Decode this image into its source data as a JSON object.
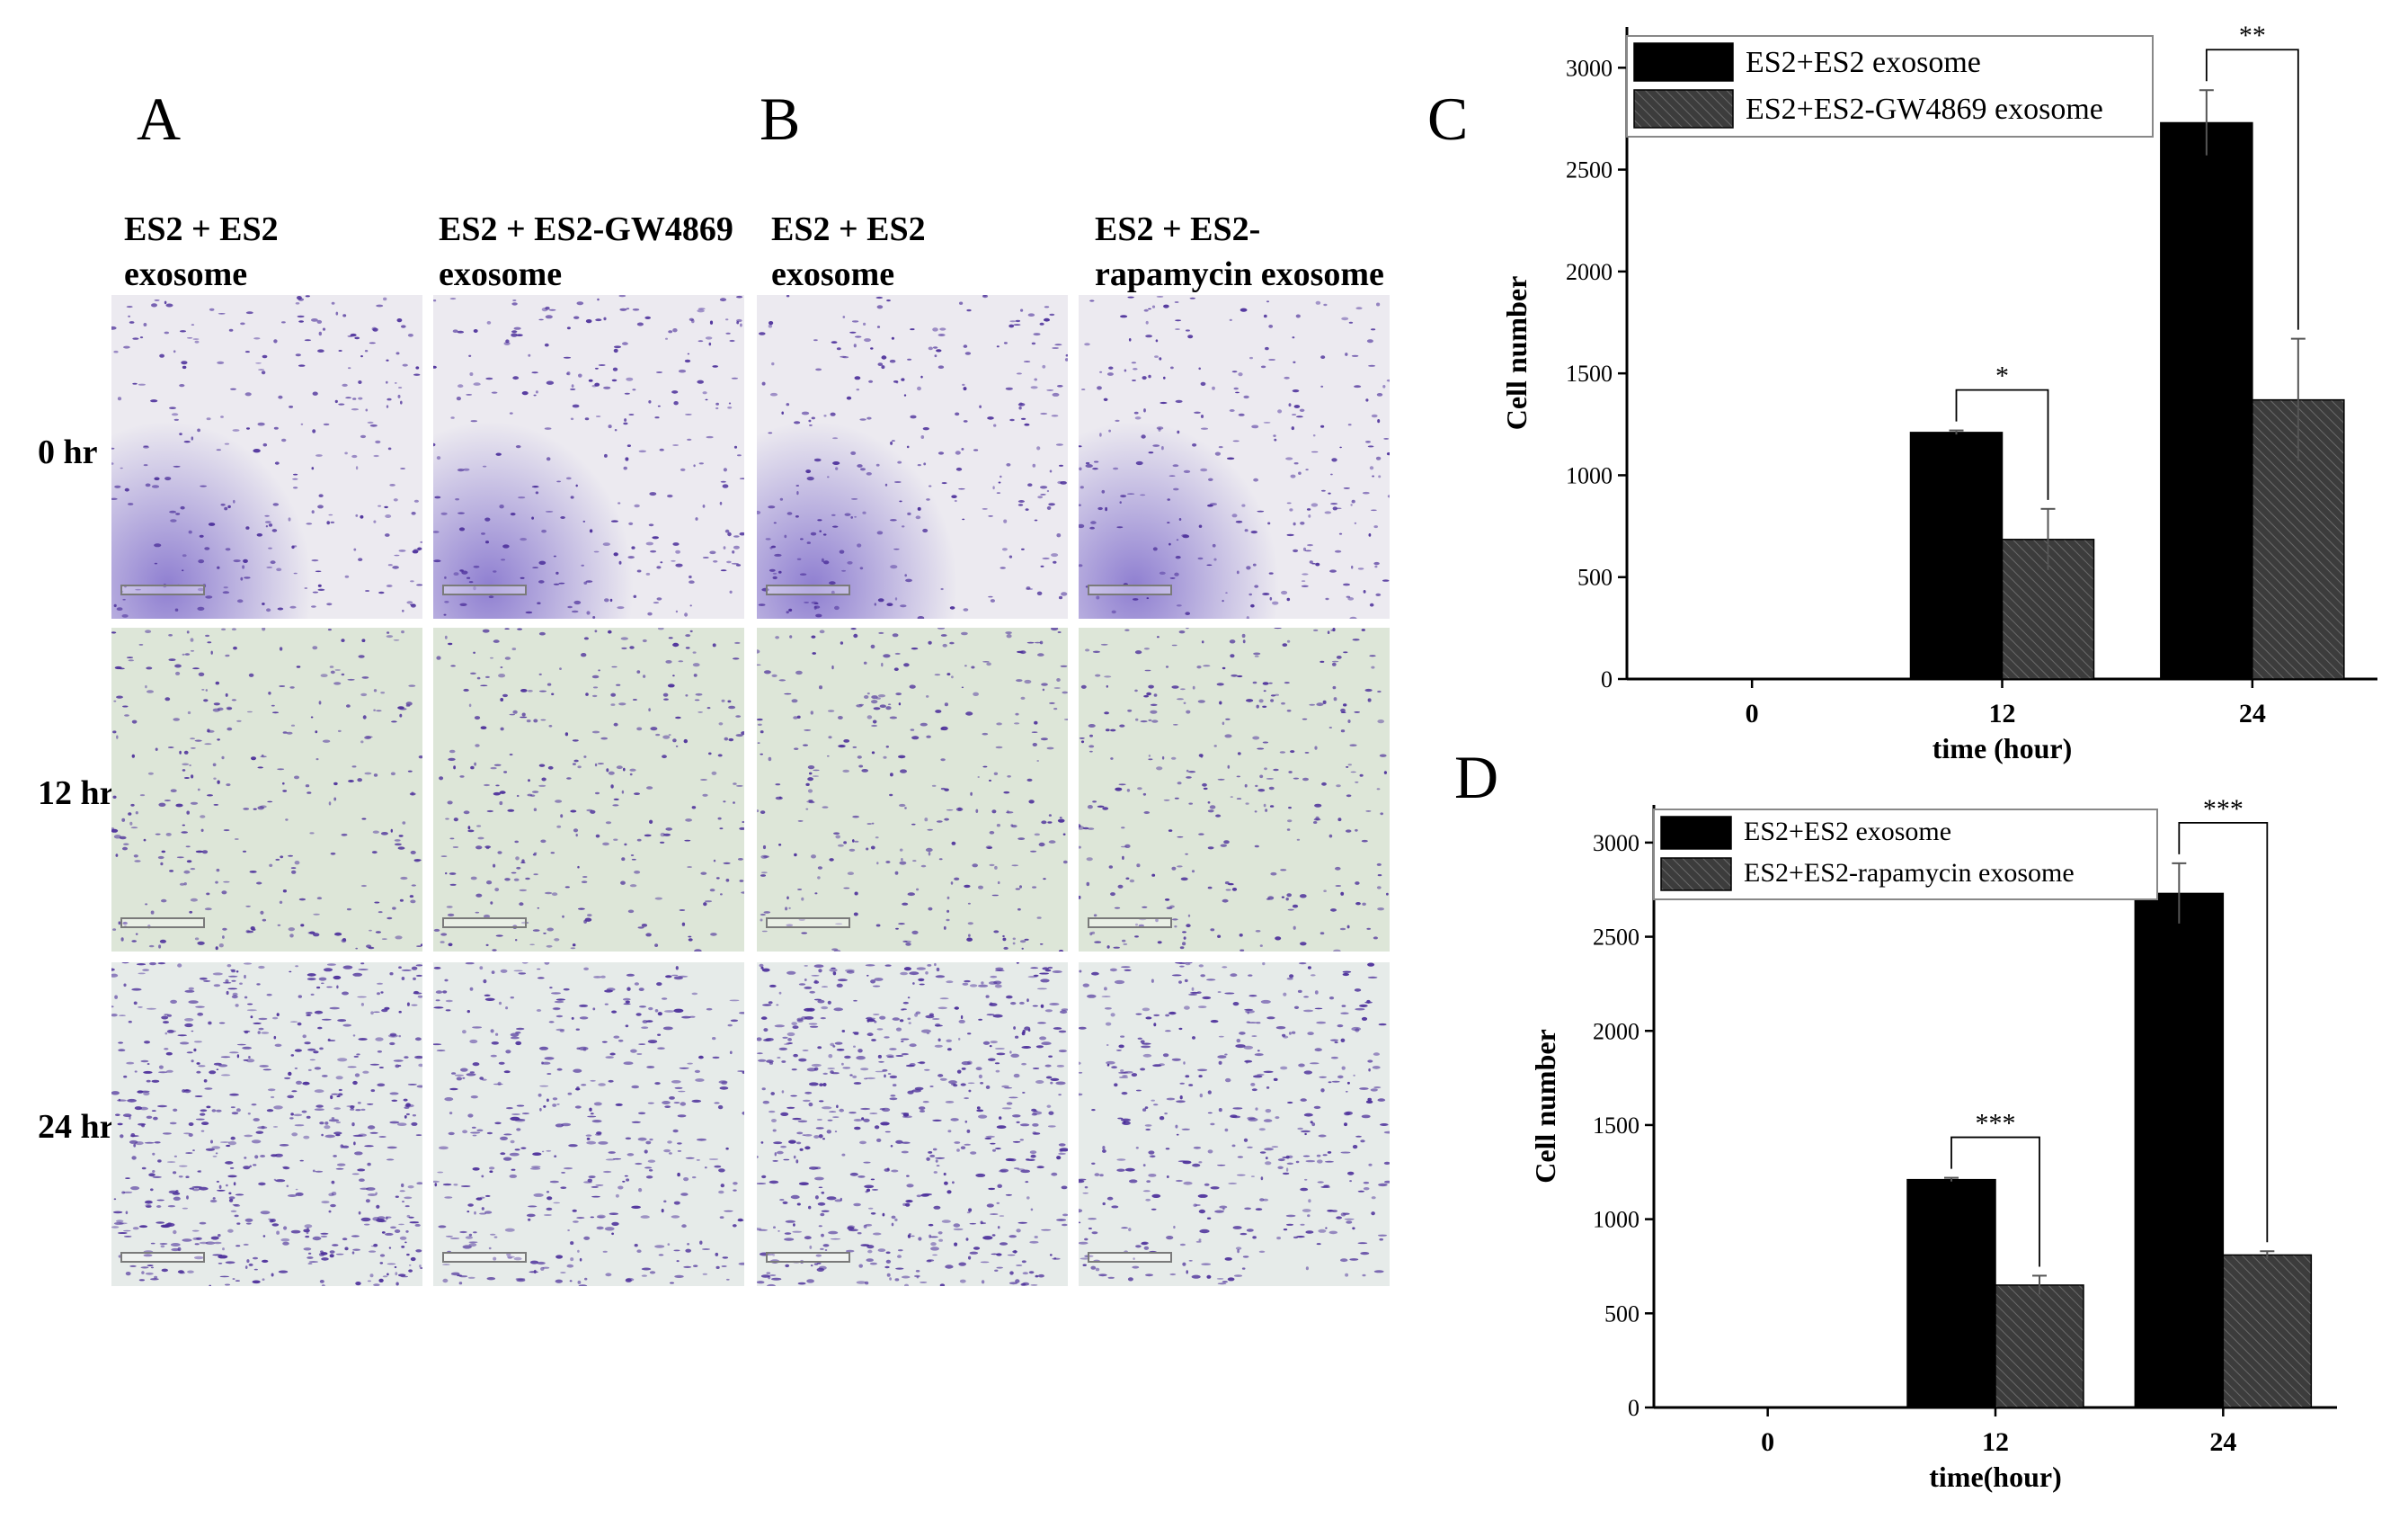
{
  "panels": {
    "A": {
      "letter": "A",
      "col1": [
        "ES2 + ES2",
        "exosome"
      ],
      "col2": [
        "ES2 + ES2-GW4869",
        "exosome"
      ]
    },
    "B": {
      "letter": "B",
      "col1": [
        "ES2 + ES2",
        "exosome"
      ],
      "col2": [
        "ES2 + ES2-",
        "rapamycin exosome"
      ]
    },
    "C": {
      "letter": "C"
    },
    "D": {
      "letter": "D"
    }
  },
  "rows": [
    "0 hr",
    "12 hr",
    "24 hr"
  ],
  "colors": {
    "series1": "#000000",
    "series2": "#3c3c3c",
    "stain": "#4b2e9a"
  },
  "chart_data": [
    {
      "id": "C",
      "type": "bar",
      "xlabel": "time (hour)",
      "ylabel": "Cell number",
      "categories": [
        "0",
        "12",
        "24"
      ],
      "ylim": [
        0,
        3200
      ],
      "yticks": [
        0,
        500,
        1000,
        1500,
        2000,
        2500,
        3000
      ],
      "legend_position": "top-left",
      "series": [
        {
          "name": "ES2+ES2 exosome",
          "values": [
            0,
            1210,
            2730
          ],
          "errors": [
            0,
            10,
            160
          ]
        },
        {
          "name": "ES2+ES2-GW4869 exosome",
          "values": [
            0,
            685,
            1370
          ],
          "errors": [
            0,
            150,
            300
          ]
        }
      ],
      "significance": [
        {
          "category": "12",
          "label": "*"
        },
        {
          "category": "24",
          "label": "**"
        }
      ]
    },
    {
      "id": "D",
      "type": "bar",
      "xlabel": "time(hour)",
      "ylabel": "Cell number",
      "categories": [
        "0",
        "12",
        "24"
      ],
      "ylim": [
        0,
        3200
      ],
      "yticks": [
        0,
        500,
        1000,
        1500,
        2000,
        2500,
        3000
      ],
      "legend_position": "top-left",
      "series": [
        {
          "name": "ES2+ES2 exosome",
          "values": [
            0,
            1210,
            2730
          ],
          "errors": [
            0,
            10,
            160
          ]
        },
        {
          "name": "ES2+ES2-rapamycin exosome",
          "values": [
            0,
            650,
            810
          ],
          "errors": [
            0,
            50,
            20
          ]
        }
      ],
      "significance": [
        {
          "category": "12",
          "label": "***"
        },
        {
          "category": "24",
          "label": "***"
        }
      ]
    }
  ]
}
